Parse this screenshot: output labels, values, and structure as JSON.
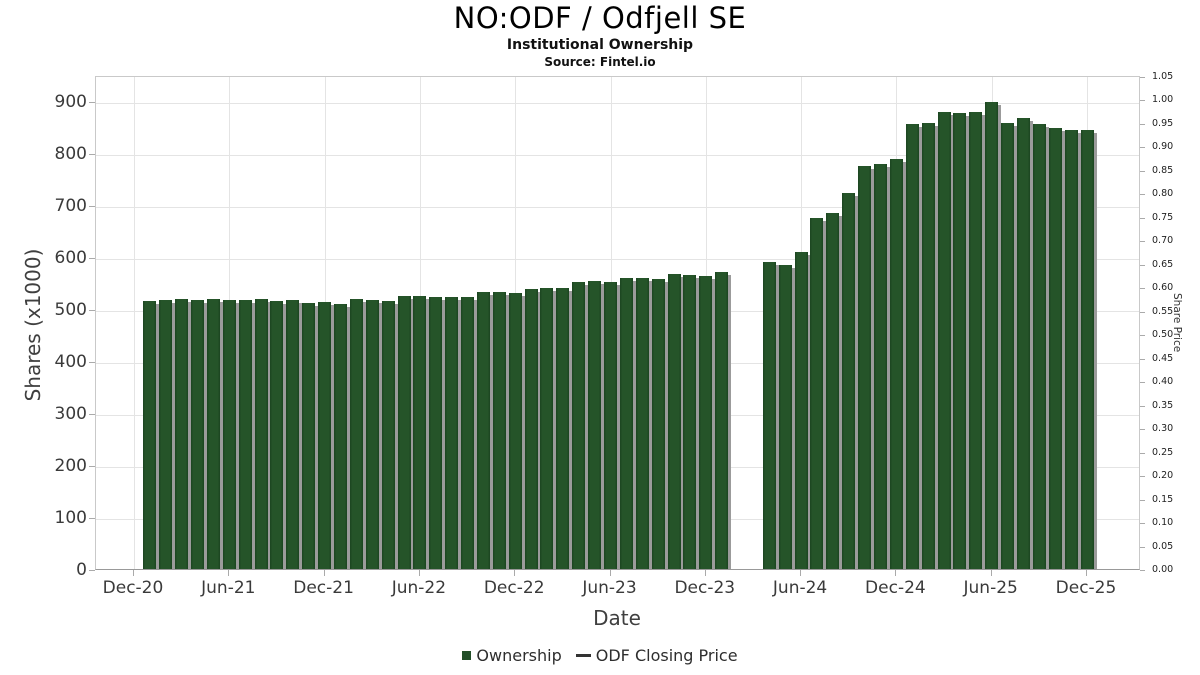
{
  "header": {
    "title": "NO:ODF / Odfjell SE",
    "subtitle": "Institutional Ownership",
    "source": "Source: Fintel.io"
  },
  "axes": {
    "left_title": "Shares (x1000)",
    "right_title": "Share Price",
    "x_title": "Date"
  },
  "legend": {
    "items": [
      {
        "label": "Ownership",
        "swatch": "bar-square"
      },
      {
        "label": "ODF Closing Price",
        "swatch": "line-dash"
      }
    ]
  },
  "colors": {
    "bar": "#255429",
    "bar_shadow": "#9b9b9b",
    "grid": "#e4e4e4",
    "axis_text": "#3a3a3a"
  },
  "chart_data": {
    "type": "bar",
    "title": "NO:ODF / Odfjell SE",
    "subtitle": "Institutional Ownership",
    "source": "Source: Fintel.io",
    "xlabel": "Date",
    "ylabel": "Shares (x1000)",
    "ylabel_right": "Share Price",
    "grid": true,
    "legend_position": "bottom",
    "x_tick_labels": [
      "Dec-20",
      "Jun-21",
      "Dec-21",
      "Jun-22",
      "Dec-22",
      "Jun-23",
      "Dec-23",
      "Jun-24",
      "Dec-24",
      "Jun-25",
      "Dec-25"
    ],
    "y_left_ticks": [
      "0",
      "100",
      "200",
      "300",
      "400",
      "500",
      "600",
      "700",
      "800",
      "900"
    ],
    "y_right_ticks": [
      "0.00",
      "0.05",
      "0.10",
      "0.15",
      "0.20",
      "0.25",
      "0.30",
      "0.35",
      "0.40",
      "0.45",
      "0.50",
      "0.55",
      "0.60",
      "0.65",
      "0.70",
      "0.75",
      "0.80",
      "0.85",
      "0.90",
      "0.95",
      "1.00",
      "1.05"
    ],
    "ylim_left": [
      0,
      950
    ],
    "ylim_right": [
      0,
      1.05
    ],
    "series": [
      {
        "name": "Ownership",
        "type": "bar",
        "unit": "shares x1000",
        "months": [
          "Jan-21",
          "Feb-21",
          "Mar-21",
          "Apr-21",
          "May-21",
          "Jun-21",
          "Jul-21",
          "Aug-21",
          "Sep-21",
          "Oct-21",
          "Nov-21",
          "Dec-21",
          "Jan-22",
          "Feb-22",
          "Mar-22",
          "Apr-22",
          "May-22",
          "Jun-22",
          "Jul-22",
          "Aug-22",
          "Sep-22",
          "Oct-22",
          "Nov-22",
          "Dec-22",
          "Jan-23",
          "Feb-23",
          "Mar-23",
          "Apr-23",
          "May-23",
          "Jun-23",
          "Jul-23",
          "Aug-23",
          "Sep-23",
          "Oct-23",
          "Nov-23",
          "Dec-23",
          "Jan-24",
          "Feb-24",
          "Mar-24",
          "Apr-24",
          "May-24",
          "Jun-24",
          "Jul-24",
          "Aug-24",
          "Sep-24",
          "Oct-24",
          "Nov-24",
          "Dec-24",
          "Jan-25",
          "Feb-25",
          "Mar-25",
          "Apr-25",
          "May-25",
          "Jun-25",
          "Jul-25",
          "Aug-25",
          "Sep-25",
          "Oct-25",
          "Nov-25",
          "Dec-25"
        ],
        "values": [
          519,
          521,
          523,
          522,
          523,
          521,
          521,
          523,
          519,
          521,
          515,
          517,
          514,
          524,
          522,
          520,
          529,
          529,
          527,
          526,
          526,
          537,
          537,
          535,
          542,
          545,
          545,
          556,
          558,
          556,
          563,
          563,
          561,
          571,
          569,
          567,
          575,
          4,
          4,
          594,
          589,
          614,
          679,
          688,
          727,
          779,
          782,
          793,
          859,
          861,
          883,
          881,
          883,
          902,
          861,
          872,
          859,
          852,
          848,
          848
        ]
      },
      {
        "name": "ODF Closing Price",
        "type": "line",
        "values": [],
        "note_visible_in_plot": "no line rendered in chart area"
      }
    ]
  }
}
